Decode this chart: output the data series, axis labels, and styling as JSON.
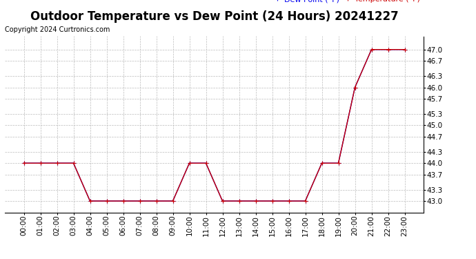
{
  "title": "Outdoor Temperature vs Dew Point (24 Hours) 20241227",
  "copyright_text": "Copyright 2024 Curtronics.com",
  "legend_dew": "Dew Point (°F)",
  "legend_temp": "Temperature (°F)",
  "hours": [
    "00:00",
    "01:00",
    "02:00",
    "03:00",
    "04:00",
    "05:00",
    "06:00",
    "07:00",
    "08:00",
    "09:00",
    "10:00",
    "11:00",
    "12:00",
    "13:00",
    "14:00",
    "15:00",
    "16:00",
    "17:00",
    "18:00",
    "19:00",
    "20:00",
    "21:00",
    "22:00",
    "23:00"
  ],
  "temperature": [
    44.0,
    44.0,
    44.0,
    44.0,
    43.0,
    43.0,
    43.0,
    43.0,
    43.0,
    43.0,
    44.0,
    44.0,
    43.0,
    43.0,
    43.0,
    43.0,
    43.0,
    43.0,
    44.0,
    44.0,
    46.0,
    47.0,
    47.0,
    47.0
  ],
  "dew_point": [
    44.0,
    44.0,
    44.0,
    44.0,
    43.0,
    43.0,
    43.0,
    43.0,
    43.0,
    43.0,
    44.0,
    44.0,
    43.0,
    43.0,
    43.0,
    43.0,
    43.0,
    43.0,
    44.0,
    44.0,
    46.0,
    47.0,
    47.0,
    47.0
  ],
  "temp_color": "#cc0000",
  "dew_color": "#0000ee",
  "ylim_min": 42.7,
  "ylim_max": 47.35,
  "yticks": [
    43.0,
    43.3,
    43.7,
    44.0,
    44.3,
    44.7,
    45.0,
    45.3,
    45.7,
    46.0,
    46.3,
    46.7,
    47.0
  ],
  "background_color": "#ffffff",
  "plot_bg_color": "#ffffff",
  "grid_color": "#bbbbbb",
  "title_fontsize": 12,
  "axis_fontsize": 7.5,
  "copyright_fontsize": 7,
  "legend_fontsize": 8,
  "marker": "+",
  "marker_size": 4,
  "linewidth": 1.0
}
